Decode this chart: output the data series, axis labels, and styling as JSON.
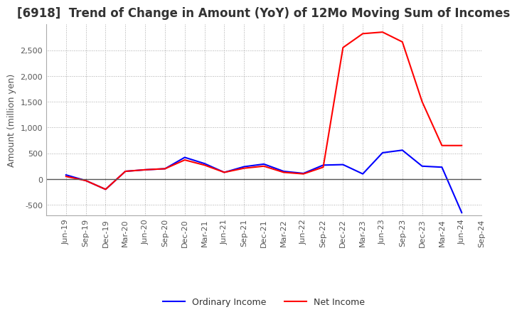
{
  "title": "[6918]  Trend of Change in Amount (YoY) of 12Mo Moving Sum of Incomes",
  "ylabel": "Amount (million yen)",
  "x_labels": [
    "Jun-19",
    "Sep-19",
    "Dec-19",
    "Mar-20",
    "Jun-20",
    "Sep-20",
    "Dec-20",
    "Mar-21",
    "Jun-21",
    "Sep-21",
    "Dec-21",
    "Mar-22",
    "Jun-22",
    "Sep-22",
    "Dec-22",
    "Mar-23",
    "Jun-23",
    "Sep-23",
    "Dec-23",
    "Mar-24",
    "Jun-24",
    "Sep-24"
  ],
  "ordinary_income": [
    80,
    -30,
    -200,
    150,
    180,
    200,
    420,
    300,
    130,
    240,
    290,
    150,
    110,
    270,
    280,
    100,
    510,
    560,
    250,
    230,
    -650,
    null
  ],
  "net_income": [
    50,
    -30,
    -200,
    150,
    180,
    200,
    370,
    270,
    130,
    210,
    250,
    130,
    100,
    230,
    2550,
    2820,
    2850,
    2660,
    1500,
    650,
    650,
    null
  ],
  "ordinary_color": "#0000ff",
  "net_color": "#ff0000",
  "ylim": [
    -700,
    3000
  ],
  "yticks": [
    -500,
    0,
    500,
    1000,
    1500,
    2000,
    2500
  ],
  "background_color": "#ffffff",
  "grid_color": "#aaaaaa",
  "title_fontsize": 12,
  "axis_fontsize": 9,
  "tick_fontsize": 8
}
